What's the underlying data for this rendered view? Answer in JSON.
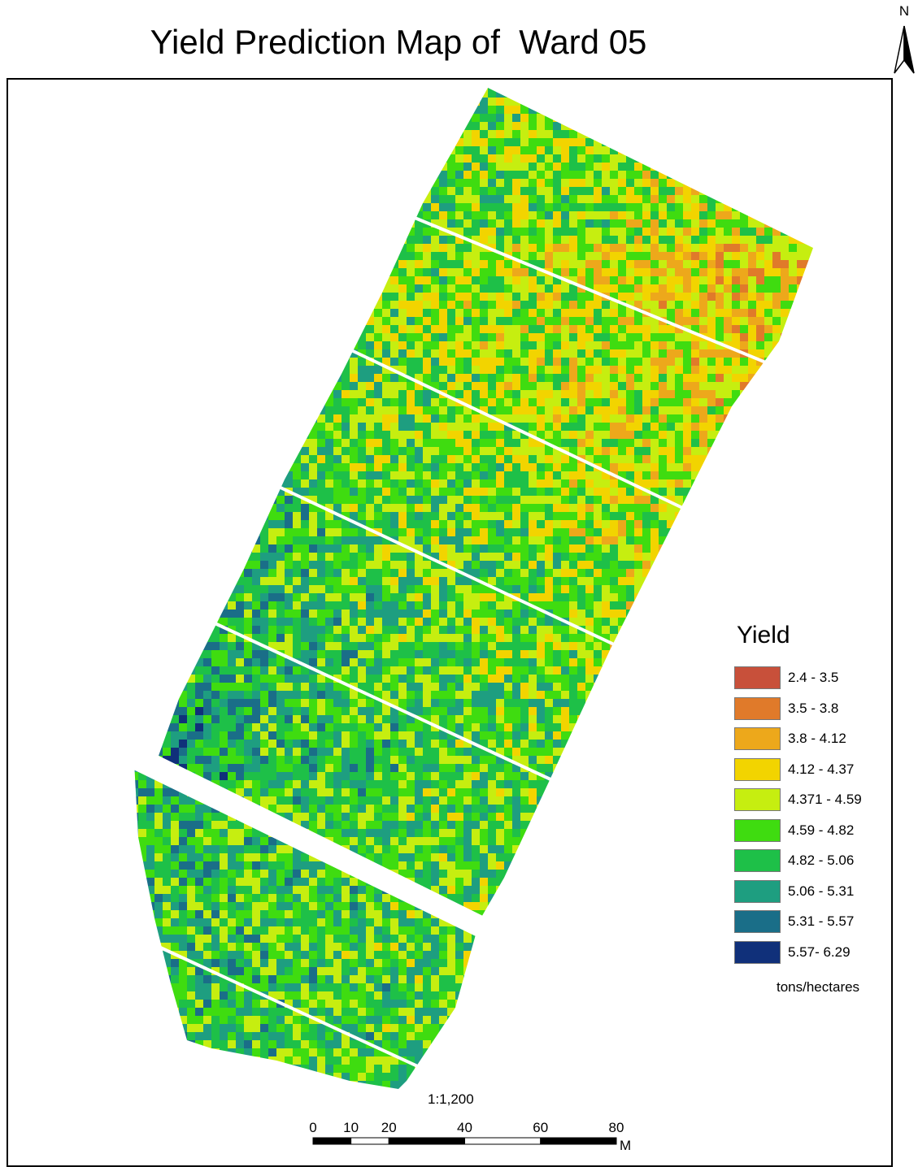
{
  "map": {
    "title": "Yield Prediction Map of  Ward 05",
    "north_arrow_label": "N",
    "scale_ratio": "1:1,200",
    "scale_bar": {
      "ticks": [
        "0",
        "10",
        "20",
        "40",
        "60",
        "80"
      ],
      "unit": "M"
    },
    "legend": {
      "title": "Yield",
      "units": "tons/hectares",
      "items": [
        {
          "label": "2.4 - 3.5",
          "color": "#c8503a"
        },
        {
          "label": "3.5 - 3.8",
          "color": "#e07a2a"
        },
        {
          "label": "3.8 - 4.12",
          "color": "#eda81b"
        },
        {
          "label": "4.12 - 4.37",
          "color": "#f2d400"
        },
        {
          "label": "4.371 - 4.59",
          "color": "#c6ee10"
        },
        {
          "label": "4.59 - 4.82",
          "color": "#3fdc10"
        },
        {
          "label": "4.82 - 5.06",
          "color": "#1ec048"
        },
        {
          "label": "5.06 - 5.31",
          "color": "#1e9e80"
        },
        {
          "label": "5.31 - 5.57",
          "color": "#1a6e88"
        },
        {
          "label": "5.57- 6.29",
          "color": "#10307a"
        }
      ]
    }
  }
}
